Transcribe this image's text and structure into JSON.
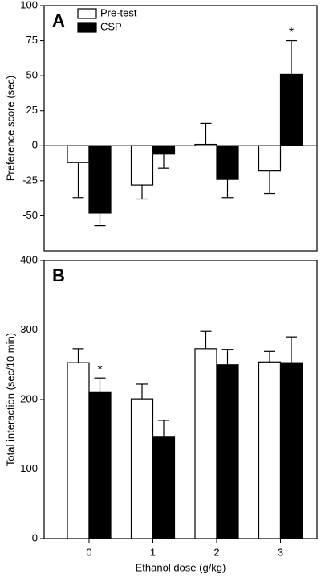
{
  "chart_data": [
    {
      "type": "bar",
      "panel_label": "A",
      "y_label": "Preference score (sec)",
      "categories": [
        null,
        null,
        null,
        null
      ],
      "series": [
        {
          "name": "Pre-test",
          "color": "#ffffff",
          "values": [
            -12,
            -28,
            1,
            -18
          ],
          "errors": [
            25,
            10,
            15,
            16
          ],
          "annotations": [
            null,
            null,
            null,
            null
          ]
        },
        {
          "name": "CSP",
          "color": "#000000",
          "values": [
            -48,
            -6,
            -24,
            51
          ],
          "errors": [
            9,
            10,
            13,
            24
          ],
          "annotations": [
            null,
            null,
            null,
            "*"
          ]
        }
      ],
      "ylim": [
        -75,
        100
      ],
      "yticks": [
        -50,
        -25,
        0,
        25,
        50,
        75,
        100
      ],
      "legend": "upper left",
      "zero_line": true
    },
    {
      "type": "bar",
      "panel_label": "B",
      "y_label": "Total interaction (sec/10 min)",
      "x_label": "Ethanol dose (g/kg)",
      "categories": [
        "0",
        "1",
        "2",
        "3"
      ],
      "series": [
        {
          "color": "#ffffff",
          "values": [
            253,
            201,
            273,
            254
          ],
          "errors": [
            20,
            21,
            25,
            15
          ],
          "annotations": [
            null,
            null,
            null,
            null
          ]
        },
        {
          "color": "#000000",
          "values": [
            210,
            147,
            250,
            253
          ],
          "errors": [
            21,
            23,
            22,
            37
          ],
          "annotations": [
            "*",
            null,
            null,
            null
          ]
        }
      ],
      "ylim": [
        0,
        400
      ],
      "yticks": [
        0,
        100,
        200,
        300,
        400
      ]
    }
  ]
}
